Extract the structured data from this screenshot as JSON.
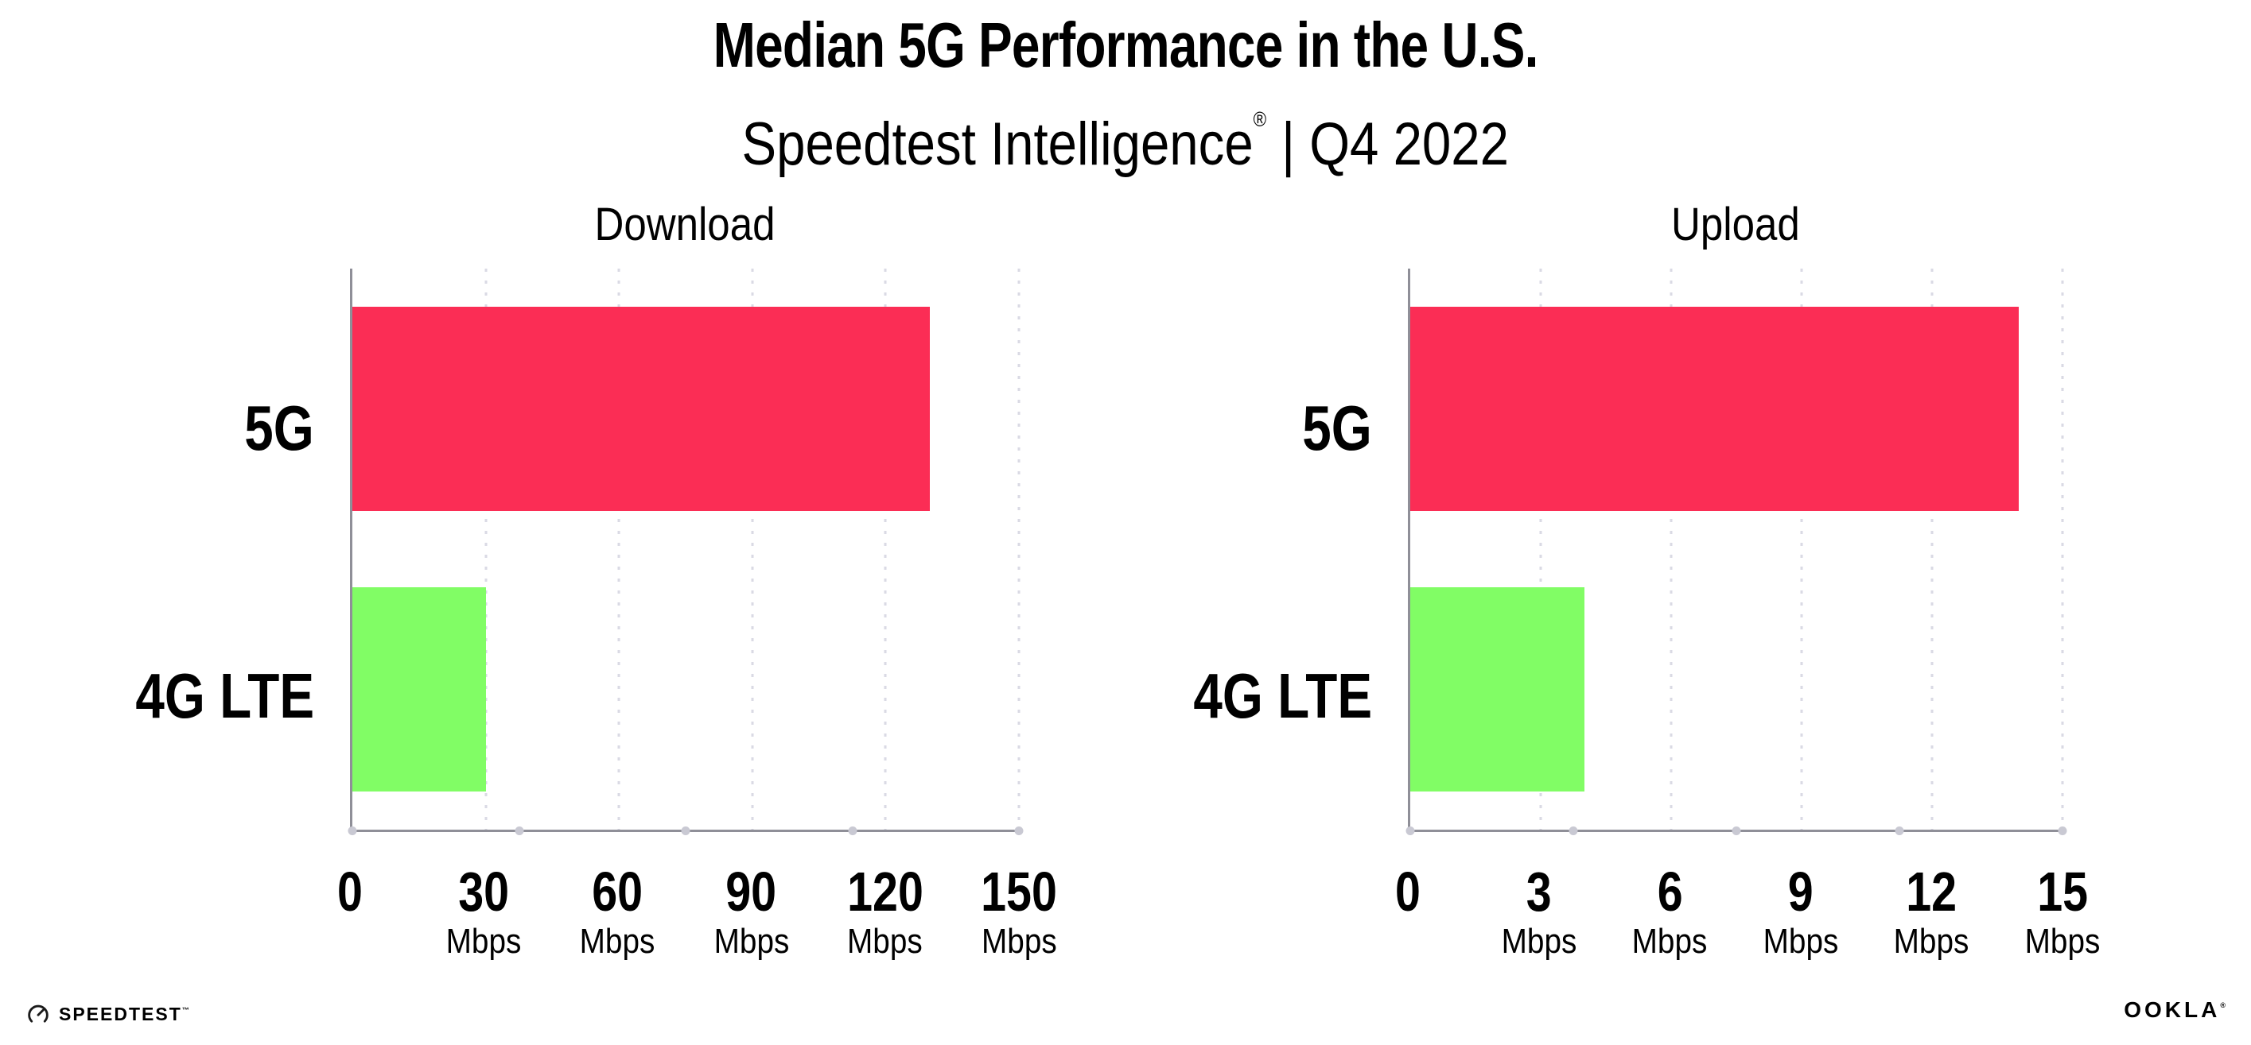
{
  "header": {
    "title": "Median 5G Performance in the U.S.",
    "subtitle": {
      "brand": "Speedtest Intelligence",
      "registered": "®",
      "rest": "| Q4 2022"
    }
  },
  "units": {
    "speed": "Mbps"
  },
  "colors": {
    "bar_5g": "#FB2D55",
    "bar_4g_lte": "#81FD65",
    "axis": "#8F8F98",
    "gridline": "#DADAE4",
    "text": "#000000"
  },
  "chart_data": [
    {
      "type": "bar",
      "orientation": "horizontal",
      "title": "Download",
      "categories": [
        "5G",
        "4G LTE"
      ],
      "values": [
        130,
        30
      ],
      "unit": "Mbps",
      "xlim": [
        0,
        150
      ],
      "xticks": [
        0,
        30,
        60,
        90,
        120,
        150
      ],
      "bar_colors": [
        "#FB2D55",
        "#81FD65"
      ],
      "grid": "dotted vertical gridlines at each tick",
      "legend": "none"
    },
    {
      "type": "bar",
      "orientation": "horizontal",
      "title": "Upload",
      "categories": [
        "5G",
        "4G LTE"
      ],
      "values": [
        14,
        4
      ],
      "unit": "Mbps",
      "xlim": [
        0,
        15
      ],
      "xticks": [
        0,
        3,
        6,
        9,
        12,
        15
      ],
      "bar_colors": [
        "#FB2D55",
        "#81FD65"
      ],
      "grid": "dotted vertical gridlines at each tick",
      "legend": "none"
    }
  ],
  "footer": {
    "speedtest_icon": "speedtest-gauge-icon",
    "speedtest_text": "SPEEDTEST",
    "speedtest_mark": "™",
    "ookla_text": "OOKLA",
    "ookla_mark": "®"
  }
}
